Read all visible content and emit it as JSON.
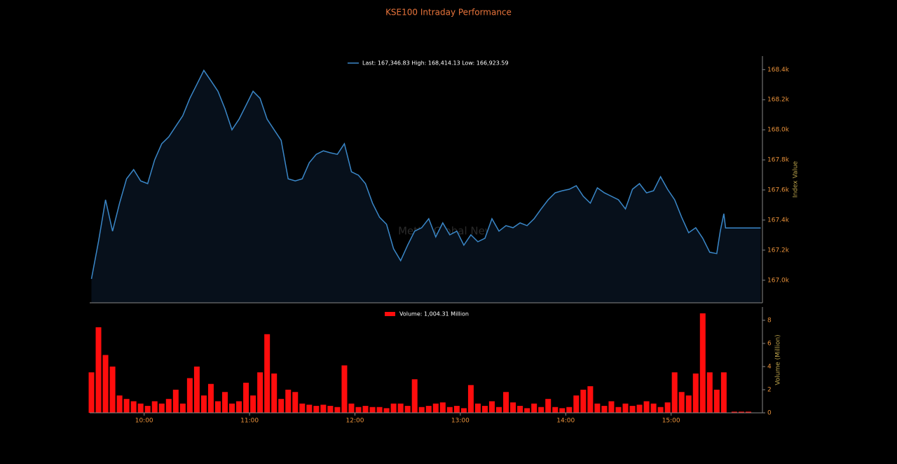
{
  "chart_data": [
    {
      "type": "area",
      "title": "KSE100 Intraday Performance",
      "ylabel": "Index Value",
      "annotation": "Mettis Global News",
      "xlim": [
        "09:29",
        "15:52"
      ],
      "ylim": [
        166850,
        168490
      ],
      "yticks": [
        {
          "value": 167000,
          "label": "167.0k"
        },
        {
          "value": 167200,
          "label": "167.2k"
        },
        {
          "value": 167400,
          "label": "167.4k"
        },
        {
          "value": 167600,
          "label": "167.6k"
        },
        {
          "value": 167800,
          "label": "167.8k"
        },
        {
          "value": 168000,
          "label": "168.0k"
        },
        {
          "value": 168200,
          "label": "168.2k"
        },
        {
          "value": 168400,
          "label": "168.4k"
        }
      ],
      "x": [
        "09:30",
        "09:34",
        "09:38",
        "09:42",
        "09:46",
        "09:50",
        "09:54",
        "09:58",
        "10:02",
        "10:06",
        "10:10",
        "10:14",
        "10:18",
        "10:22",
        "10:26",
        "10:30",
        "10:34",
        "10:38",
        "10:42",
        "10:46",
        "10:50",
        "10:54",
        "10:58",
        "11:02",
        "11:06",
        "11:10",
        "11:14",
        "11:18",
        "11:22",
        "11:26",
        "11:30",
        "11:34",
        "11:38",
        "11:42",
        "11:46",
        "11:50",
        "11:54",
        "11:58",
        "12:02",
        "12:06",
        "12:10",
        "12:14",
        "12:18",
        "12:22",
        "12:26",
        "12:30",
        "12:34",
        "12:38",
        "12:42",
        "12:46",
        "12:50",
        "12:54",
        "12:58",
        "13:02",
        "13:06",
        "13:10",
        "13:14",
        "13:18",
        "13:22",
        "13:26",
        "13:30",
        "13:34",
        "13:38",
        "13:42",
        "13:46",
        "13:50",
        "13:54",
        "13:58",
        "14:02",
        "14:06",
        "14:10",
        "14:14",
        "14:18",
        "14:22",
        "14:26",
        "14:30",
        "14:34",
        "14:38",
        "14:42",
        "14:46",
        "14:50",
        "14:54",
        "14:58",
        "15:02",
        "15:06",
        "15:10",
        "15:14",
        "15:18",
        "15:22",
        "15:26",
        "15:28",
        "15:30",
        "15:31",
        "15:51"
      ],
      "series": [
        {
          "name": "Last: 167,346.83 High: 168,414.13 Low: 166,923.59",
          "color": "#3a87c8",
          "fill": "#07101b",
          "values": [
            167009,
            167256,
            167535,
            167326,
            167512,
            167674,
            167735,
            167660,
            167642,
            167800,
            167907,
            167953,
            168023,
            168093,
            168209,
            168302,
            168395,
            168326,
            168256,
            168140,
            168000,
            168070,
            168163,
            168256,
            168209,
            168070,
            168000,
            167930,
            167674,
            167660,
            167674,
            167781,
            167837,
            167860,
            167847,
            167837,
            167907,
            167721,
            167698,
            167642,
            167512,
            167419,
            167372,
            167209,
            167130,
            167233,
            167326,
            167349,
            167409,
            167288,
            167381,
            167302,
            167326,
            167233,
            167302,
            167256,
            167279,
            167409,
            167326,
            167363,
            167349,
            167381,
            167363,
            167409,
            167474,
            167535,
            167581,
            167595,
            167605,
            167628,
            167558,
            167512,
            167614,
            167581,
            167558,
            167535,
            167474,
            167605,
            167642,
            167581,
            167595,
            167688,
            167605,
            167535,
            167419,
            167316,
            167349,
            167279,
            167186,
            167177,
            167326,
            167442,
            167347,
            167347
          ]
        }
      ]
    },
    {
      "type": "bar",
      "ylabel": "Volume (Million)",
      "xlim": [
        "09:29",
        "15:52"
      ],
      "ylim": [
        0,
        9.15
      ],
      "yticks": [
        0,
        2,
        4,
        6,
        8
      ],
      "xticks": [
        "10:00",
        "11:00",
        "12:00",
        "13:00",
        "14:00",
        "15:00"
      ],
      "x": [
        "09:30",
        "09:34",
        "09:38",
        "09:42",
        "09:46",
        "09:50",
        "09:54",
        "09:58",
        "10:02",
        "10:06",
        "10:10",
        "10:14",
        "10:18",
        "10:22",
        "10:26",
        "10:30",
        "10:34",
        "10:38",
        "10:42",
        "10:46",
        "10:50",
        "10:54",
        "10:58",
        "11:02",
        "11:06",
        "11:10",
        "11:14",
        "11:18",
        "11:22",
        "11:26",
        "11:30",
        "11:34",
        "11:38",
        "11:42",
        "11:46",
        "11:50",
        "11:54",
        "11:58",
        "12:02",
        "12:06",
        "12:10",
        "12:14",
        "12:18",
        "12:22",
        "12:26",
        "12:30",
        "12:34",
        "12:38",
        "12:42",
        "12:46",
        "12:50",
        "12:54",
        "12:58",
        "13:02",
        "13:06",
        "13:10",
        "13:14",
        "13:18",
        "13:22",
        "13:26",
        "13:30",
        "13:34",
        "13:38",
        "13:42",
        "13:46",
        "13:50",
        "13:54",
        "13:58",
        "14:02",
        "14:06",
        "14:10",
        "14:14",
        "14:18",
        "14:22",
        "14:26",
        "14:30",
        "14:34",
        "14:38",
        "14:42",
        "14:46",
        "14:50",
        "14:54",
        "14:58",
        "15:02",
        "15:06",
        "15:10",
        "15:14",
        "15:18",
        "15:22",
        "15:26",
        "15:30",
        "15:36",
        "15:40",
        "15:44"
      ],
      "series": [
        {
          "name": "Volume: 1,004.31 Million",
          "color": "#ff0d0d",
          "values": [
            3.5,
            7.4,
            5.0,
            4.0,
            1.5,
            1.2,
            1.0,
            0.8,
            0.6,
            1.0,
            0.8,
            1.2,
            2.0,
            0.8,
            3.0,
            4.0,
            1.5,
            2.5,
            1.0,
            1.8,
            0.8,
            1.0,
            2.6,
            1.5,
            3.5,
            6.8,
            3.4,
            1.2,
            2.0,
            1.8,
            0.8,
            0.7,
            0.6,
            0.7,
            0.6,
            0.5,
            4.1,
            0.8,
            0.5,
            0.6,
            0.5,
            0.5,
            0.4,
            0.8,
            0.8,
            0.6,
            2.9,
            0.5,
            0.6,
            0.8,
            0.9,
            0.5,
            0.6,
            0.4,
            2.4,
            0.8,
            0.6,
            1.0,
            0.5,
            1.8,
            0.9,
            0.6,
            0.4,
            0.8,
            0.5,
            1.2,
            0.5,
            0.4,
            0.5,
            1.5,
            2.0,
            2.3,
            0.8,
            0.6,
            1.0,
            0.5,
            0.8,
            0.6,
            0.7,
            1.0,
            0.8,
            0.5,
            0.9,
            3.5,
            1.8,
            1.5,
            3.4,
            8.6,
            3.5,
            2.0,
            3.5,
            0.1,
            0.1,
            0.1
          ]
        }
      ]
    }
  ]
}
